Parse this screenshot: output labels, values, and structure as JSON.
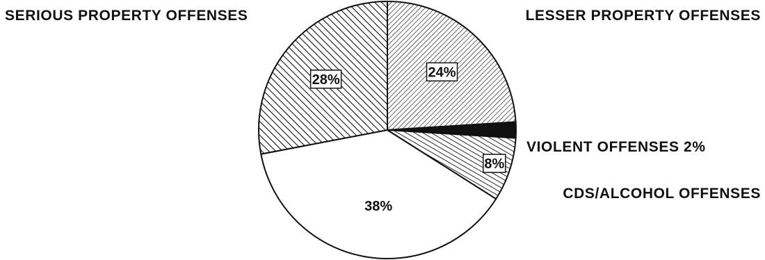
{
  "chart_data": {
    "type": "pie",
    "slices": [
      {
        "label": "LESSER PROPERTY OFFENSES",
        "value": 24,
        "pct_text": "24%",
        "pattern": "hatch-fine",
        "ext_label_text": "LESSER PROPERTY OFFENSES"
      },
      {
        "label": "VIOLENT OFFENSES",
        "value": 2,
        "pct_text": "2%",
        "pattern": "solid-black",
        "ext_label_text": "VIOLENT OFFENSES 2%"
      },
      {
        "label": "CDS/ALCOHOL OFFENSES",
        "value": 8,
        "pct_text": "8%",
        "pattern": "hatch-medium",
        "ext_label_text": "CDS/ALCOHOL OFFENSES"
      },
      {
        "label": "",
        "value": 38,
        "pct_text": "38%",
        "pattern": "white",
        "ext_label_text": ""
      },
      {
        "label": "SERIOUS PROPERTY OFFENSES",
        "value": 28,
        "pct_text": "28%",
        "pattern": "hatch-bold",
        "ext_label_text": "SERIOUS PROPERTY OFFENSES"
      }
    ],
    "legend": "none"
  },
  "colors": {
    "ink": "#111111",
    "background": "#ffffff"
  }
}
